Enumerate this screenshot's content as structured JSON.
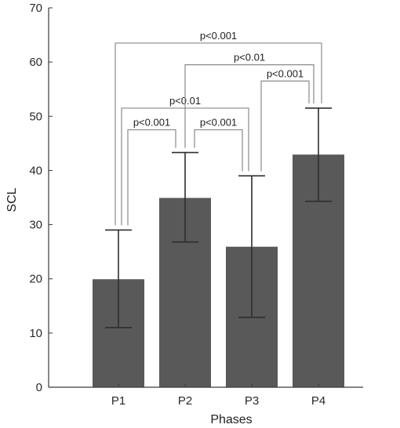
{
  "chart_data": {
    "type": "bar",
    "categories": [
      "P1",
      "P2",
      "P3",
      "P4"
    ],
    "values": [
      20,
      35,
      26,
      43
    ],
    "errors": [
      [
        11,
        29
      ],
      [
        26.8,
        43.3
      ],
      [
        12.9,
        39
      ],
      [
        34.3,
        51.5
      ]
    ],
    "xlabel": "Phases",
    "ylabel": "SCL",
    "ylim": [
      0,
      70
    ],
    "yticks": [
      0,
      10,
      20,
      30,
      40,
      50,
      60,
      70
    ],
    "bar_color": "#595959",
    "grid": false,
    "comparisons": [
      {
        "from": "P1",
        "to": "P2",
        "label": "p<0.001"
      },
      {
        "from": "P2",
        "to": "P3",
        "label": "p<0.001"
      },
      {
        "from": "P1",
        "to": "P3",
        "label": "p<0.01"
      },
      {
        "from": "P3",
        "to": "P4",
        "label": "p<0.001"
      },
      {
        "from": "P2",
        "to": "P4",
        "label": "p<0.01"
      },
      {
        "from": "P1",
        "to": "P4",
        "label": "p<0.001"
      }
    ]
  }
}
